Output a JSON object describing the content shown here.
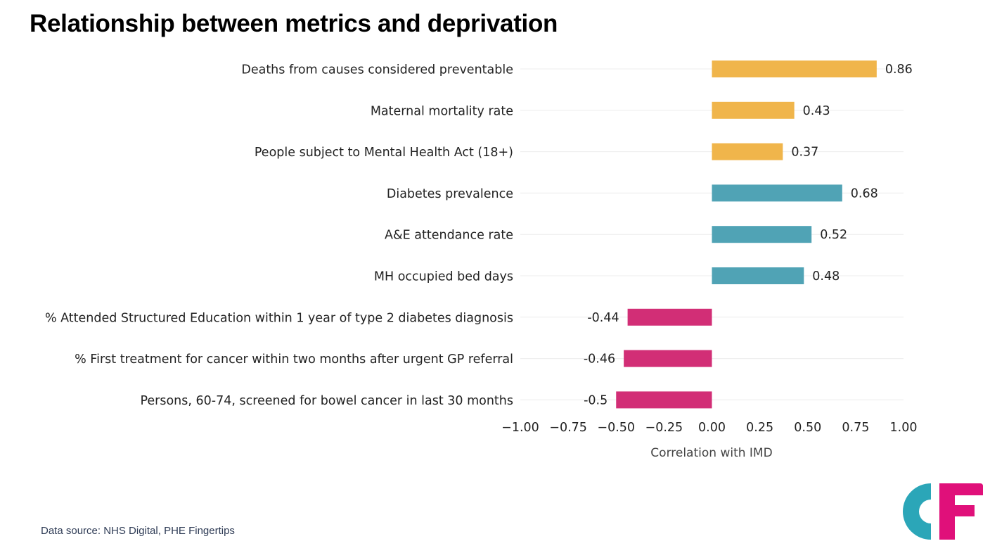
{
  "page": {
    "title": "Relationship between metrics and deprivation",
    "source": "Data source: NHS Digital, PHE Fingertips"
  },
  "colors": {
    "outcome": "#f0b54b",
    "activity": "#50a3b5",
    "negative": "#d22e76",
    "logo_teal": "#2ba6b8",
    "logo_pink": "#e0107a"
  },
  "logo": {
    "name": "cf-logo",
    "letters": "CF"
  },
  "chart_data": {
    "type": "bar",
    "orientation": "horizontal",
    "title": "Relationship between metrics and deprivation",
    "xlabel": "Correlation with IMD",
    "ylabel": "",
    "xlim": [
      -1.0,
      1.0
    ],
    "xticks": [
      -1.0,
      -0.75,
      -0.5,
      -0.25,
      0.0,
      0.25,
      0.5,
      0.75,
      1.0
    ],
    "xtick_labels": [
      "−1.00",
      "−0.75",
      "−0.50",
      "−0.25",
      "0.00",
      "0.25",
      "0.50",
      "0.75",
      "1.00"
    ],
    "grid": true,
    "categories": [
      "Deaths from causes considered preventable",
      "Maternal mortality rate",
      "People subject to Mental Health Act (18+)",
      "Diabetes prevalence",
      "A&E attendance rate",
      "MH occupied bed days",
      "% Attended Structured Education within 1 year of type 2 diabetes diagnosis",
      "% First treatment for cancer within two months after urgent GP referral",
      "Persons, 60-74, screened for bowel cancer in last 30 months"
    ],
    "values": [
      0.86,
      0.43,
      0.37,
      0.68,
      0.52,
      0.48,
      -0.44,
      -0.46,
      -0.5
    ],
    "value_labels": [
      "0.86",
      "0.43",
      "0.37",
      "0.68",
      "0.52",
      "0.48",
      "-0.44",
      "-0.46",
      "-0.5"
    ],
    "color_groups": [
      "outcome",
      "outcome",
      "outcome",
      "activity",
      "activity",
      "activity",
      "negative",
      "negative",
      "negative"
    ]
  }
}
